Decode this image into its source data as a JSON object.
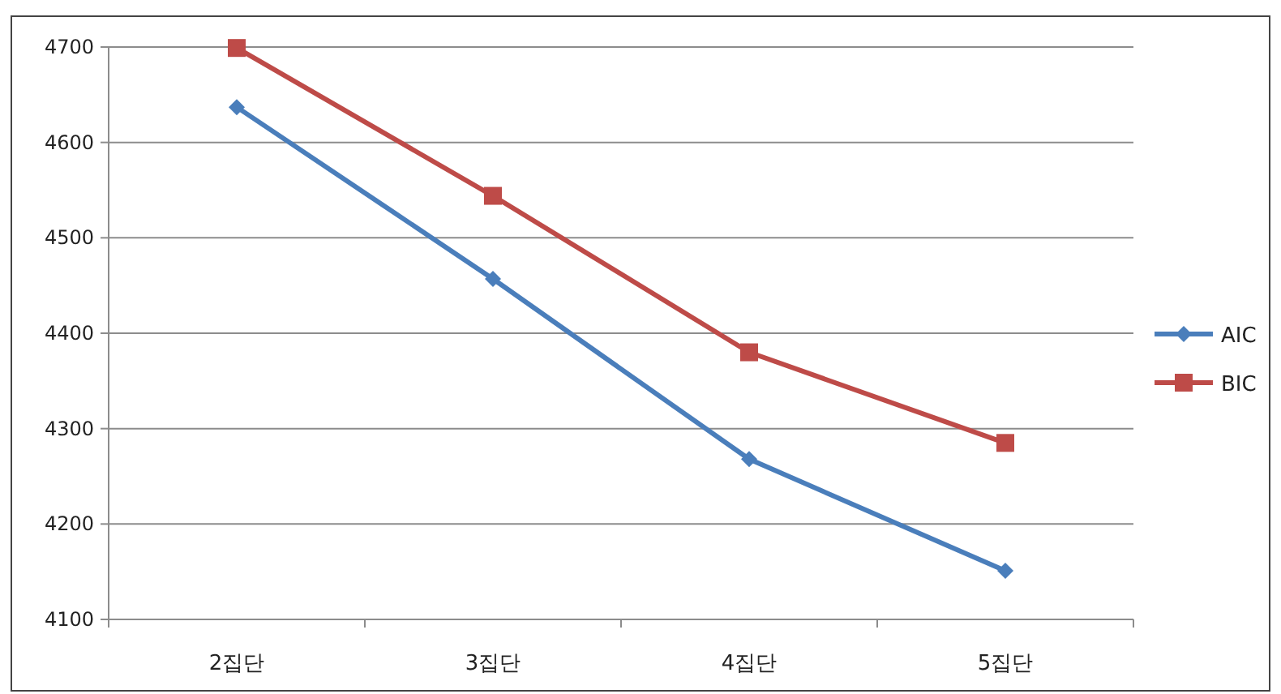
{
  "chart_data": {
    "type": "line",
    "categories": [
      "2집단",
      "3집단",
      "4집단",
      "5집단"
    ],
    "series": [
      {
        "name": "AIC",
        "color": "#4a7ebb",
        "marker": "diamond",
        "values": [
          4637,
          4457,
          4268,
          4151
        ]
      },
      {
        "name": "BIC",
        "color": "#be4b48",
        "marker": "square",
        "values": [
          4699,
          4544,
          4380,
          4285
        ]
      }
    ],
    "ylim": [
      4100,
      4700
    ],
    "yticks": [
      4100,
      4200,
      4300,
      4400,
      4500,
      4600,
      4700
    ],
    "grid": "y",
    "legend": "right",
    "line_style": "solid"
  }
}
